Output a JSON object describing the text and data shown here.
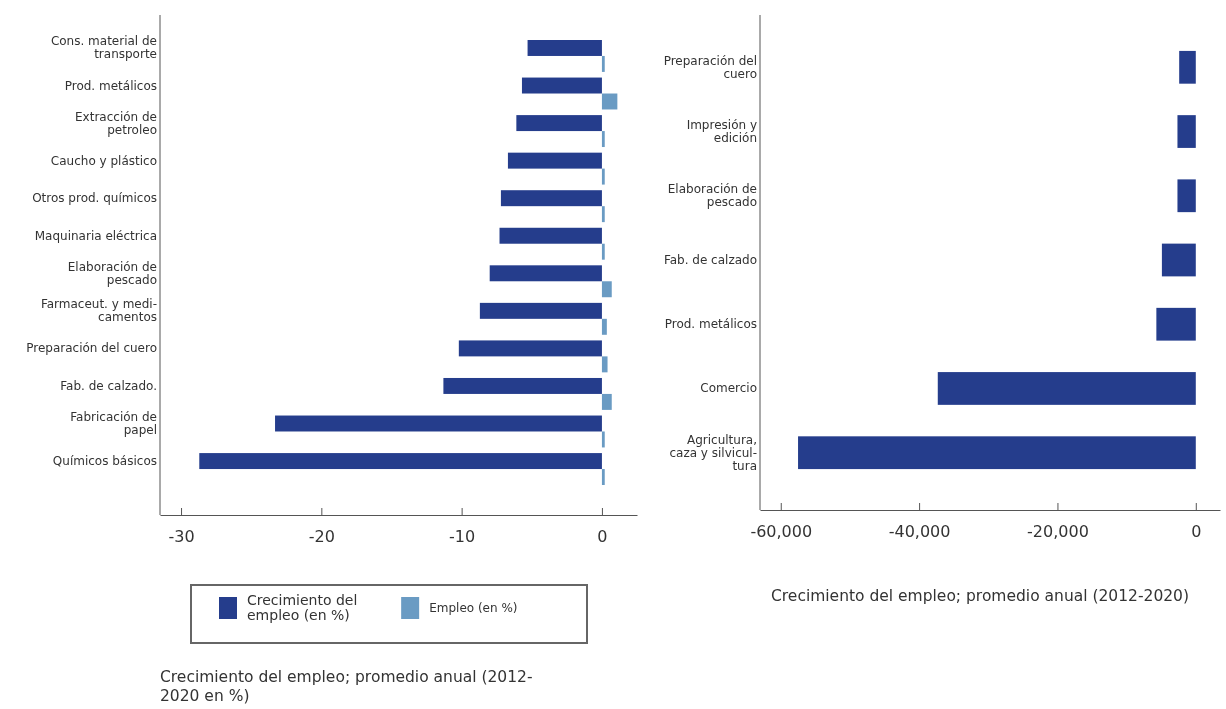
{
  "chart_data": [
    {
      "type": "bar",
      "orientation": "horizontal",
      "categories": [
        "Cons. material de\ntransporte",
        "Prod. metálicos",
        "Extracción de\npetroleo",
        "Caucho y plástico",
        "Otros prod. químicos",
        "Maquinaria eléctrica",
        "Elaboración de\npescado",
        "Farmaceut. y medi-\ncamentos",
        "Preparación del cuero",
        "Fab. de calzado.",
        "Fabricación de\npapel",
        "Químicos básicos"
      ],
      "series": [
        {
          "name": "Crecimiento del\nempleo (en %)",
          "color": "#253d8c",
          "values": [
            -5.3,
            -5.7,
            -6.1,
            -6.7,
            -7.2,
            -7.3,
            -8.0,
            -8.7,
            -10.2,
            -11.3,
            -23.3,
            -28.7
          ]
        },
        {
          "name": "Empleo (en %)",
          "color": "#6a9bc3",
          "values": [
            0.2,
            1.1,
            0.2,
            0.2,
            0.2,
            0.2,
            0.7,
            0.35,
            0.4,
            0.7,
            0.2,
            0.2
          ]
        }
      ],
      "xlim": [
        -31.5,
        2.5
      ],
      "xticks": [
        -30,
        -20,
        -10,
        0
      ],
      "legend": "bottom",
      "grid": false,
      "xlabel": "Crecimiento del empleo; promedio anual (2012-\n2020 en %)"
    },
    {
      "type": "bar",
      "orientation": "horizontal",
      "categories": [
        "Preparación del\ncuero",
        "Impresión y\nedición",
        "Elaboración de\npescado",
        "Fab. de calzado",
        "Prod. metálicos",
        "Comercio",
        "Agricultura,\ncaza y silvicul-\ntura"
      ],
      "values": [
        -2400,
        -2650,
        -2650,
        -4900,
        -5700,
        -37300,
        -57500
      ],
      "color": "#253d8c",
      "xlim": [
        -63000,
        3500
      ],
      "xticks": [
        {
          "value": -60000,
          "label": "-60,000"
        },
        {
          "value": -40000,
          "label": "-40,000"
        },
        {
          "value": -20000,
          "label": "-20,000"
        },
        0
      ],
      "grid": false,
      "xlabel": "Crecimiento del empleo; promedio anual (2012-2020)"
    }
  ]
}
